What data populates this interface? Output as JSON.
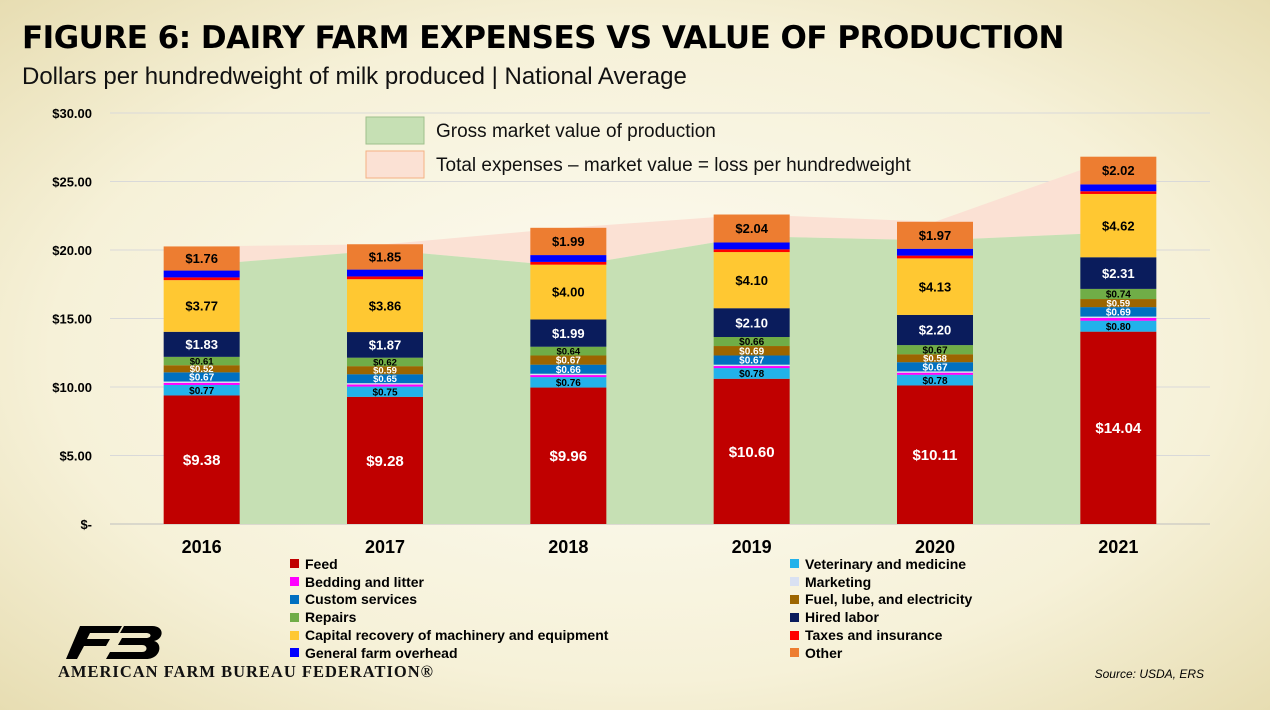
{
  "chart_data": {
    "type": "bar",
    "stacked": true,
    "title": "FIGURE 6: DAIRY FARM EXPENSES VS VALUE OF PRODUCTION",
    "subtitle": "Dollars per hundredweight of milk produced | National Average",
    "categories": [
      "2016",
      "2017",
      "2018",
      "2019",
      "2020",
      "2021"
    ],
    "ylim": [
      0,
      30
    ],
    "yticks": [
      0,
      5,
      10,
      15,
      20,
      25,
      30
    ],
    "ytick_labels": [
      "$-",
      "$5.00",
      "$10.00",
      "$15.00",
      "$20.00",
      "$25.00",
      "$30.00"
    ],
    "grid": true,
    "series": [
      {
        "name": "Feed",
        "color": "#C00000",
        "values": [
          9.38,
          9.28,
          9.96,
          10.6,
          10.11,
          14.04
        ],
        "labels": [
          "$9.38",
          "$9.28",
          "$9.96",
          "$10.60",
          "$10.11",
          "$14.04"
        ]
      },
      {
        "name": "Veterinary and medicine",
        "color": "#22B2EA",
        "values": [
          0.77,
          0.75,
          0.76,
          0.78,
          0.78,
          0.8
        ],
        "labels": [
          "$0.77",
          "$0.75",
          "$0.76",
          "$0.78",
          "$0.78",
          "$0.80"
        ]
      },
      {
        "name": "Bedding and litter",
        "color": "#FF00FF",
        "values": [
          0.15,
          0.15,
          0.15,
          0.15,
          0.15,
          0.2
        ],
        "labels": [
          "",
          "",
          "",
          "",
          "",
          ""
        ]
      },
      {
        "name": "Marketing",
        "color": "#D9E1F2",
        "values": [
          0.1,
          0.1,
          0.1,
          0.1,
          0.1,
          0.1
        ],
        "labels": [
          "",
          "",
          "",
          "",
          "",
          ""
        ]
      },
      {
        "name": "Custom services",
        "color": "#0070C0",
        "values": [
          0.67,
          0.65,
          0.66,
          0.67,
          0.67,
          0.69
        ],
        "labels": [
          "$0.67",
          "$0.65",
          "$0.66",
          "$0.67",
          "$0.67",
          "$0.69"
        ]
      },
      {
        "name": "Fuel, lube, and electricity",
        "color": "#9C6500",
        "values": [
          0.52,
          0.59,
          0.67,
          0.69,
          0.58,
          0.59
        ],
        "labels": [
          "$0.52",
          "$0.59",
          "$0.67",
          "$0.69",
          "$0.58",
          "$0.59"
        ]
      },
      {
        "name": "Repairs",
        "color": "#70AD47",
        "values": [
          0.61,
          0.62,
          0.64,
          0.66,
          0.67,
          0.74
        ],
        "labels": [
          "$0.61",
          "$0.62",
          "$0.64",
          "$0.66",
          "$0.67",
          "$0.74"
        ]
      },
      {
        "name": "Hired labor",
        "color": "#0A1C5C",
        "values": [
          1.83,
          1.87,
          1.99,
          2.1,
          2.2,
          2.31
        ],
        "labels": [
          "$1.83",
          "$1.87",
          "$1.99",
          "$2.10",
          "$2.20",
          "$2.31"
        ]
      },
      {
        "name": "Capital recovery of machinery and equipment",
        "color": "#FFC832",
        "values": [
          3.77,
          3.86,
          4.0,
          4.1,
          4.13,
          4.62
        ],
        "labels": [
          "$3.77",
          "$3.86",
          "$4.00",
          "$4.10",
          "$4.13",
          "$4.62"
        ]
      },
      {
        "name": "Taxes and insurance",
        "color": "#FF0000",
        "values": [
          0.2,
          0.2,
          0.2,
          0.2,
          0.2,
          0.2
        ],
        "labels": [
          "",
          "",
          "",
          "",
          "",
          ""
        ]
      },
      {
        "name": "General farm overhead",
        "color": "#0000FF",
        "values": [
          0.5,
          0.5,
          0.5,
          0.5,
          0.5,
          0.5
        ],
        "labels": [
          "",
          "",
          "",
          "",
          "",
          ""
        ]
      },
      {
        "name": "Other",
        "color": "#ED7D31",
        "values": [
          1.76,
          1.85,
          1.99,
          2.04,
          1.97,
          2.02
        ],
        "labels": [
          "$1.76",
          "$1.85",
          "$1.99",
          "$2.04",
          "$1.97",
          "$2.02"
        ]
      }
    ],
    "areas": [
      {
        "name": "Gross market value of production",
        "color": "#C6E0B4",
        "values": [
          18.9,
          20.0,
          18.8,
          21.0,
          20.7,
          21.3
        ]
      },
      {
        "name": "Total expenses – market value = loss per hundredweight",
        "color": "#FBE1D4",
        "edge_color": "#F4B183"
      }
    ],
    "legend_position": "bottom"
  },
  "logo": {
    "text": "AMERICAN FARM BUREAU FEDERATION®"
  },
  "source": "Source: USDA, ERS"
}
